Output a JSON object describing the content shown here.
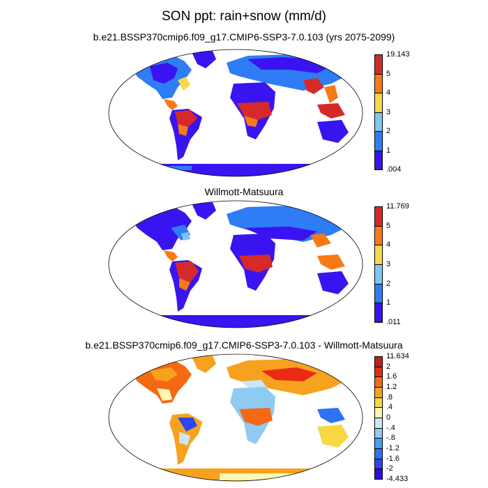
{
  "main_title": "SON ppt: rain+snow (mm/d)",
  "panels": [
    {
      "title": "b.e21.BSSP370cmip6.f09_g17.CMIP6-SSP3-7.0.103 (yrs 2075-2099)",
      "colorbar": {
        "labels": [
          ".004",
          "1",
          "2",
          "3",
          "4",
          "5",
          "19.143"
        ],
        "colors": [
          "#3a14f0",
          "#2f7cf7",
          "#7fc7f2",
          "#f5d949",
          "#f77a16",
          "#d62a2a"
        ]
      }
    },
    {
      "title": "Willmott-Matsuura",
      "colorbar": {
        "labels": [
          ".011",
          "1",
          "2",
          "3",
          "4",
          "5",
          "11.769"
        ],
        "colors": [
          "#3a14f0",
          "#2f7cf7",
          "#7fc7f2",
          "#f5d949",
          "#f77a16",
          "#d62a2a"
        ]
      }
    },
    {
      "title": "b.e21.BSSP370cmip6.f09_g17.CMIP6-SSP3-7.0.103 - Willmott-Matsuura",
      "colorbar": {
        "labels": [
          "-4.433",
          "-2",
          "-1.6",
          "-1.2",
          "-.8",
          "-.4",
          "0",
          ".4",
          ".8",
          "1.2",
          "1.6",
          "2",
          "11.634"
        ],
        "colors": [
          "#2d0fd6",
          "#2f45f0",
          "#2f72f5",
          "#45a0f7",
          "#8fcaf2",
          "#c9e6f6",
          "#fff7b4",
          "#f7d842",
          "#f7a21f",
          "#f46a14",
          "#ec2a14",
          "#c81a1a"
        ]
      }
    }
  ]
}
